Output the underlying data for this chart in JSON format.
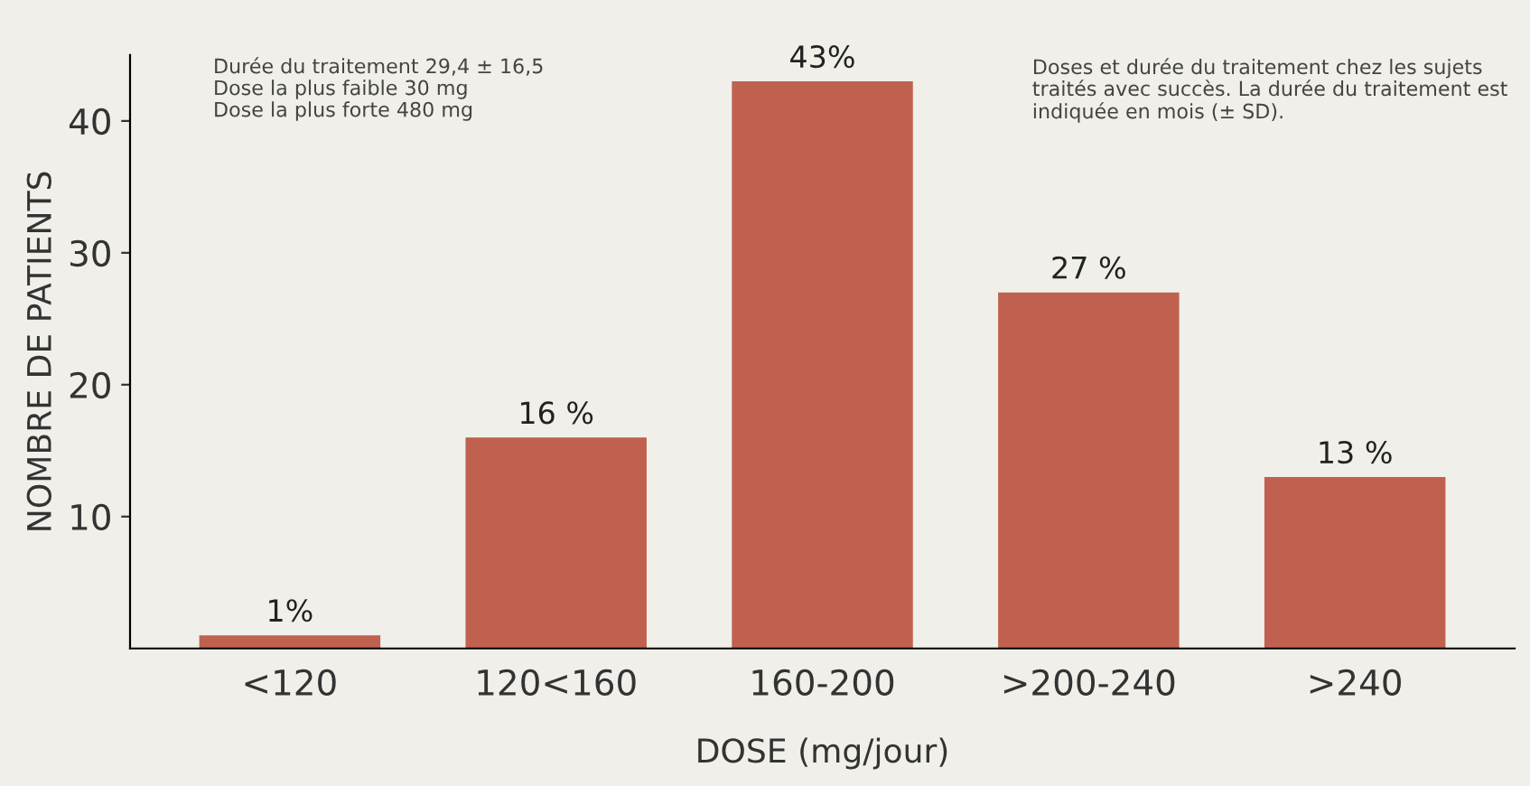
{
  "chart_data": {
    "type": "bar",
    "xlabel": "DOSE (mg/jour)",
    "ylabel": "NOMBRE DE PATIENTS",
    "categories": [
      "<120",
      "120<160",
      "160-200",
      ">200-240",
      ">240"
    ],
    "values": [
      1,
      16,
      43,
      27,
      13
    ],
    "value_labels": [
      "1%",
      "16 %",
      "43%",
      "27 %",
      "13 %"
    ],
    "color": "#c0614f",
    "ylim": [
      0,
      45
    ],
    "yticks": [
      10,
      20,
      30,
      40
    ],
    "grid": false,
    "annotations": [
      "Durée du traitement 29,4 ± 16,5\nDose la plus faible 30 mg\nDose la plus forte 480 mg",
      "Doses et durée du traitement chez les sujets\ntraités avec succès. La durée du traitement est\nindiquée en mois (± SD)."
    ]
  }
}
